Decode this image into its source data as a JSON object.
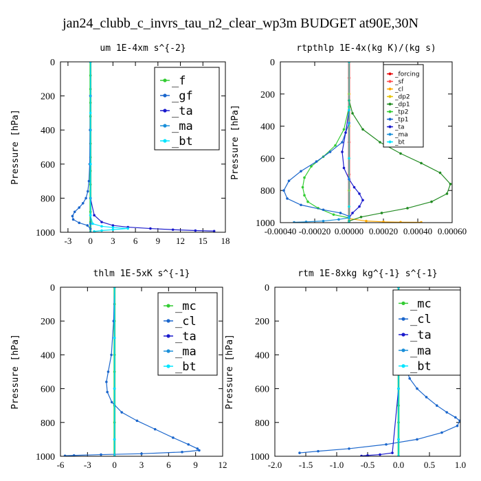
{
  "figure_title": "jan24_clubb_c_invrs_tau_n2_clear_wp3m  BUDGET at90E,30N",
  "colors": {
    "f": "#33cc33",
    "gf": "#1a66cc",
    "ta": "#1a1acc",
    "ma": "#1a8fd9",
    "bt": "#00e5ff",
    "forcing": "#e60000",
    "sf": "#ff4d4d",
    "cl_orange": "#ffaa00",
    "dp2": "#e6c300",
    "dp1": "#228b22",
    "tp2": "#33cc33",
    "tp1": "#1a66cc",
    "mc": "#33cc33",
    "cl_blue": "#1a66cc"
  },
  "chart_data": [
    {
      "type": "line",
      "title": "um   1E-4xm s^{-2}",
      "ylabel": "Pressure [hPa]",
      "xlim": [
        -4,
        18
      ],
      "ylim": [
        1000,
        0
      ],
      "xticks": [
        -3,
        0,
        3,
        6,
        9,
        12,
        15,
        18
      ],
      "xtick_labels": [
        "-3",
        "0",
        "3",
        "6",
        "9",
        "12",
        "15",
        "18"
      ],
      "yticks": [
        0,
        200,
        400,
        600,
        800,
        1000
      ],
      "ytick_labels": [
        "0",
        "200",
        "400",
        "600",
        "800",
        "1000"
      ],
      "legend_position": "top-right",
      "legend_style": "big",
      "series": [
        {
          "name": "_f",
          "color": "f",
          "x": [
            0,
            0,
            0,
            0,
            0,
            0,
            0,
            0,
            0,
            0,
            0,
            0,
            0,
            0
          ],
          "y": [
            0,
            80,
            160,
            240,
            320,
            400,
            480,
            560,
            640,
            720,
            800,
            880,
            940,
            1000
          ]
        },
        {
          "name": "_gf",
          "color": "gf",
          "x": [
            0,
            0,
            -0.05,
            -0.1,
            -0.2,
            -0.35,
            -0.6,
            -1.0,
            -1.5,
            -2.1,
            -2.4,
            -2.3,
            -1.5,
            -0.4,
            0
          ],
          "y": [
            0,
            200,
            400,
            600,
            700,
            760,
            800,
            830,
            855,
            880,
            905,
            925,
            945,
            960,
            980
          ]
        },
        {
          "name": "_ta",
          "color": "ta",
          "x": [
            0,
            0,
            0,
            0,
            0,
            0.5,
            1.5,
            3,
            5,
            8,
            11,
            14,
            16.5
          ],
          "y": [
            0,
            200,
            400,
            600,
            800,
            900,
            940,
            960,
            970,
            978,
            985,
            990,
            993
          ]
        },
        {
          "name": "_ma",
          "color": "ma",
          "x": [
            0,
            0,
            0,
            0,
            0,
            0,
            0,
            0
          ],
          "y": [
            0,
            200,
            400,
            600,
            800,
            900,
            950,
            1000
          ]
        },
        {
          "name": "_bt",
          "color": "bt",
          "x": [
            0,
            0,
            0,
            0,
            0.3,
            1.5,
            3,
            5,
            3,
            1.5,
            0.5
          ],
          "y": [
            0,
            300,
            600,
            900,
            950,
            965,
            972,
            978,
            985,
            990,
            995
          ]
        }
      ]
    },
    {
      "type": "line",
      "title": "rtpthlp   1E-4x(kg K)/(kg s)",
      "ylabel": "Pressure [hPa]",
      "xlim": [
        -0.0004,
        0.0006
      ],
      "ylim": [
        1000,
        0
      ],
      "xticks": [
        -0.0004,
        -0.0002,
        0,
        0.0002,
        0.0004,
        0.0006
      ],
      "xtick_labels": [
        "-0.00040",
        "-0.00020",
        "0.00000",
        "0.00020",
        "0.00040",
        "0.00060"
      ],
      "yticks": [
        0,
        200,
        400,
        600,
        800,
        1000
      ],
      "ytick_labels": [
        "0",
        "200",
        "400",
        "600",
        "800",
        "1000"
      ],
      "legend_position": "top-right",
      "legend_style": "small",
      "series": [
        {
          "name": "_forcing",
          "color": "forcing",
          "x": [
            0,
            0,
            0,
            0,
            0,
            0,
            0,
            0,
            0,
            0,
            0
          ],
          "y": [
            0,
            100,
            200,
            300,
            400,
            500,
            600,
            700,
            800,
            900,
            1000
          ]
        },
        {
          "name": "_sf",
          "color": "sf",
          "x": [
            0,
            0,
            0,
            0,
            0,
            0,
            0,
            0,
            0,
            0,
            0
          ],
          "y": [
            0,
            100,
            200,
            300,
            400,
            500,
            600,
            700,
            800,
            900,
            1000
          ]
        },
        {
          "name": "_cl",
          "color": "cl_orange",
          "x": [
            0,
            0,
            0,
            0.0001,
            0.0002,
            0.0003,
            0.00042
          ],
          "y": [
            0,
            900,
            975,
            990,
            995,
            997,
            998
          ]
        },
        {
          "name": "_dp2",
          "color": "dp2",
          "x": [
            0,
            0,
            0,
            0,
            0,
            0,
            0
          ],
          "y": [
            0,
            200,
            400,
            600,
            800,
            900,
            1000
          ]
        },
        {
          "name": "_dp1",
          "color": "dp1",
          "x": [
            0,
            2e-05,
            8e-05,
            0.00018,
            0.0003,
            0.00042,
            0.00053,
            0.00059,
            0.00057,
            0.00048,
            0.00034,
            0.00019,
            7e-05,
            0
          ],
          "y": [
            240,
            320,
            420,
            500,
            570,
            630,
            690,
            760,
            820,
            870,
            910,
            940,
            965,
            990
          ]
        },
        {
          "name": "_tp2",
          "color": "tp2",
          "x": [
            0,
            -3e-05,
            -8e-05,
            -0.00015,
            -0.00022,
            -0.00026,
            -0.00027,
            -0.00026,
            -0.00024,
            -0.00018,
            -9e-05,
            0
          ],
          "y": [
            280,
            420,
            520,
            590,
            650,
            720,
            780,
            830,
            870,
            910,
            950,
            970
          ]
        },
        {
          "name": "_tp1",
          "color": "tp1",
          "x": [
            0,
            -4e-05,
            -0.00011,
            -0.00019,
            -0.00028,
            -0.00035,
            -0.00038,
            -0.00036,
            -0.00028,
            -0.00015,
            -5e-05,
            0
          ],
          "y": [
            380,
            500,
            560,
            620,
            680,
            740,
            800,
            850,
            890,
            920,
            940,
            960
          ]
        },
        {
          "name": "_ta",
          "color": "ta",
          "x": [
            0,
            -2e-05,
            -4e-05,
            -3e-05,
            0,
            3e-05,
            6e-05,
            8e-05,
            6e-05,
            2e-05,
            0
          ],
          "y": [
            300,
            440,
            560,
            660,
            730,
            780,
            820,
            860,
            900,
            940,
            970
          ]
        },
        {
          "name": "_ma",
          "color": "ma",
          "x": [
            0,
            -6e-05,
            -0.00015,
            -0.00025,
            -0.00032
          ],
          "y": [
            970,
            980,
            990,
            995,
            998
          ]
        },
        {
          "name": "_bt",
          "color": "bt",
          "x": [
            0,
            0,
            0,
            0,
            0
          ],
          "y": [
            0,
            300,
            600,
            900,
            1000
          ]
        }
      ]
    },
    {
      "type": "line",
      "title": "thlm   1E-5xK s^{-1}",
      "ylabel": "Pressure [hPa]",
      "xlim": [
        -6,
        12
      ],
      "ylim": [
        1000,
        0
      ],
      "xticks": [
        -6,
        -3,
        0,
        3,
        6,
        9,
        12
      ],
      "xtick_labels": [
        "-6",
        "-3",
        "0",
        "3",
        "6",
        "9",
        "12"
      ],
      "yticks": [
        0,
        200,
        400,
        600,
        800,
        1000
      ],
      "ytick_labels": [
        "0",
        "200",
        "400",
        "600",
        "800",
        "1000"
      ],
      "legend_position": "top-right",
      "legend_style": "big",
      "series": [
        {
          "name": "_mc",
          "color": "mc",
          "x": [
            0,
            0,
            0,
            0,
            0,
            0,
            0,
            0,
            0,
            0,
            0
          ],
          "y": [
            0,
            100,
            200,
            300,
            400,
            500,
            600,
            700,
            800,
            900,
            1000
          ]
        },
        {
          "name": "_cl",
          "color": "cl_blue",
          "x": [
            0,
            -0.1,
            -0.35,
            -0.7,
            -0.9,
            -0.8,
            -0.3,
            0.8,
            2.5,
            4.5,
            6.5,
            8.2,
            9.2,
            9.4,
            7.5,
            3,
            -1.5,
            -4.5,
            -5.5
          ],
          "y": [
            0,
            200,
            400,
            500,
            560,
            620,
            680,
            740,
            790,
            840,
            890,
            930,
            955,
            965,
            975,
            985,
            990,
            995,
            997
          ]
        },
        {
          "name": "_ta",
          "color": "ta",
          "x": [
            0,
            0,
            0,
            0,
            0
          ],
          "y": [
            0,
            300,
            600,
            900,
            1000
          ]
        },
        {
          "name": "_ma",
          "color": "ma",
          "x": [
            0,
            0,
            0,
            0,
            0
          ],
          "y": [
            0,
            300,
            600,
            900,
            1000
          ]
        },
        {
          "name": "_bt",
          "color": "bt",
          "x": [
            0,
            0,
            0,
            0,
            0
          ],
          "y": [
            0,
            300,
            600,
            900,
            1000
          ]
        }
      ]
    },
    {
      "type": "line",
      "title": "rtm   1E-8xkg kg^{-1} s^{-1}",
      "ylabel": "Pressure [hPa]",
      "xlim": [
        -2.0,
        1.0
      ],
      "ylim": [
        1000,
        0
      ],
      "xticks": [
        -2.0,
        -1.5,
        -1.0,
        -0.5,
        0.0,
        0.5,
        1.0
      ],
      "xtick_labels": [
        "-2.0",
        "-1.5",
        "-1.0",
        "-0.5",
        "0.0",
        "0.5",
        "1.0"
      ],
      "yticks": [
        0,
        200,
        400,
        600,
        800,
        1000
      ],
      "ytick_labels": [
        "0",
        "200",
        "400",
        "600",
        "800",
        "1000"
      ],
      "legend_position": "top-right",
      "legend_style": "big",
      "series": [
        {
          "name": "_mc",
          "color": "mc",
          "x": [
            0,
            0,
            0,
            0,
            0,
            0,
            0,
            0,
            0,
            0,
            0
          ],
          "y": [
            0,
            100,
            200,
            300,
            400,
            500,
            600,
            700,
            800,
            900,
            1000
          ]
        },
        {
          "name": "_cl",
          "color": "cl_blue",
          "x": [
            0,
            0.02,
            0.05,
            0.08,
            0.1,
            0.12,
            0.18,
            0.3,
            0.45,
            0.62,
            0.78,
            0.92,
            0.99,
            0.95,
            0.7,
            0.3,
            -0.2,
            -0.8,
            -1.3,
            -1.6
          ],
          "y": [
            0,
            150,
            250,
            350,
            420,
            480,
            540,
            600,
            650,
            700,
            740,
            770,
            790,
            820,
            860,
            900,
            930,
            955,
            970,
            980
          ]
        },
        {
          "name": "_ta",
          "color": "ta",
          "x": [
            0,
            0,
            0,
            -0.1,
            -0.3,
            -0.5,
            -0.6
          ],
          "y": [
            0,
            300,
            600,
            980,
            990,
            995,
            998
          ]
        },
        {
          "name": "_ma",
          "color": "ma",
          "x": [
            0,
            0,
            0,
            0,
            0
          ],
          "y": [
            0,
            300,
            600,
            900,
            1000
          ]
        },
        {
          "name": "_bt",
          "color": "bt",
          "x": [
            0,
            0,
            0,
            0,
            0
          ],
          "y": [
            0,
            300,
            600,
            900,
            1000
          ]
        }
      ]
    }
  ]
}
